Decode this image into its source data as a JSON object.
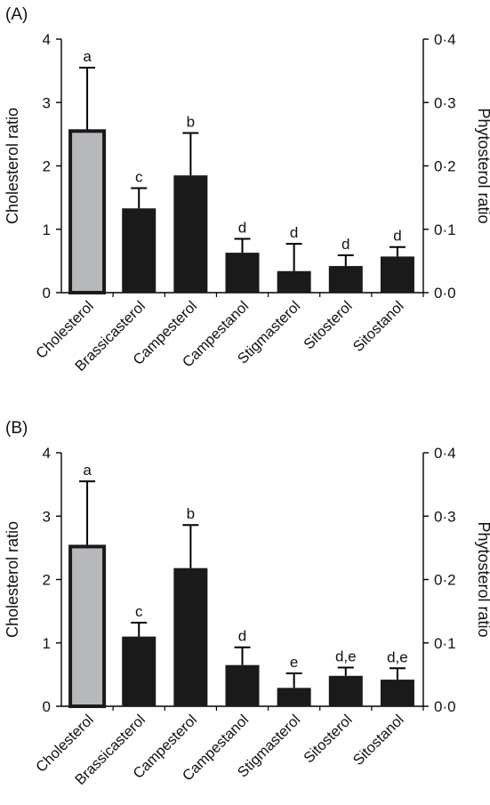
{
  "chart_data": [
    {
      "type": "bar",
      "panel_label": "(A)",
      "categories": [
        "Cholesterol",
        "Brassicasterol",
        "Campesterol",
        "Campestanol",
        "Stigmasterol",
        "Sitosterol",
        "Sitostanol"
      ],
      "left_axis": {
        "label": "Cholesterol ratio",
        "ylim": [
          0,
          4
        ],
        "ticks": [
          "0",
          "1",
          "2",
          "3",
          "4"
        ]
      },
      "right_axis": {
        "label": "Phytosterol ratio",
        "ylim": [
          0,
          0.4
        ],
        "ticks": [
          "0·0",
          "0·1",
          "0·2",
          "0·3",
          "0·4"
        ]
      },
      "values": [
        2.55,
        0.133,
        0.185,
        0.063,
        0.034,
        0.042,
        0.057
      ],
      "errors": [
        1.0,
        0.032,
        0.067,
        0.022,
        0.043,
        0.017,
        0.015
      ],
      "value_axis": [
        "left",
        "right",
        "right",
        "right",
        "right",
        "right",
        "right"
      ],
      "letters": [
        "a",
        "c",
        "b",
        "d",
        "d",
        "d",
        "d"
      ],
      "colors": [
        "#b7b8bb",
        "#1a1a1a",
        "#1a1a1a",
        "#1a1a1a",
        "#1a1a1a",
        "#1a1a1a",
        "#1a1a1a"
      ]
    },
    {
      "type": "bar",
      "panel_label": "(B)",
      "categories": [
        "Cholesterol",
        "Brassicasterol",
        "Campesterol",
        "Campestanol",
        "Stigmasterol",
        "Sitosterol",
        "Sitostanol"
      ],
      "left_axis": {
        "label": "Cholesterol ratio",
        "ylim": [
          0,
          4
        ],
        "ticks": [
          "0",
          "1",
          "2",
          "3",
          "4"
        ]
      },
      "right_axis": {
        "label": "Phytosterol ratio",
        "ylim": [
          0,
          0.4
        ],
        "ticks": [
          "0·0",
          "0·1",
          "0·2",
          "0·3",
          "0·4"
        ]
      },
      "values": [
        2.52,
        0.11,
        0.218,
        0.065,
        0.029,
        0.048,
        0.042
      ],
      "errors": [
        1.03,
        0.022,
        0.068,
        0.028,
        0.023,
        0.013,
        0.018
      ],
      "value_axis": [
        "left",
        "right",
        "right",
        "right",
        "right",
        "right",
        "right"
      ],
      "letters": [
        "a",
        "c",
        "b",
        "d",
        "e",
        "d,e",
        "d,e"
      ],
      "colors": [
        "#b7b8bb",
        "#1a1a1a",
        "#1a1a1a",
        "#1a1a1a",
        "#1a1a1a",
        "#1a1a1a",
        "#1a1a1a"
      ]
    }
  ]
}
